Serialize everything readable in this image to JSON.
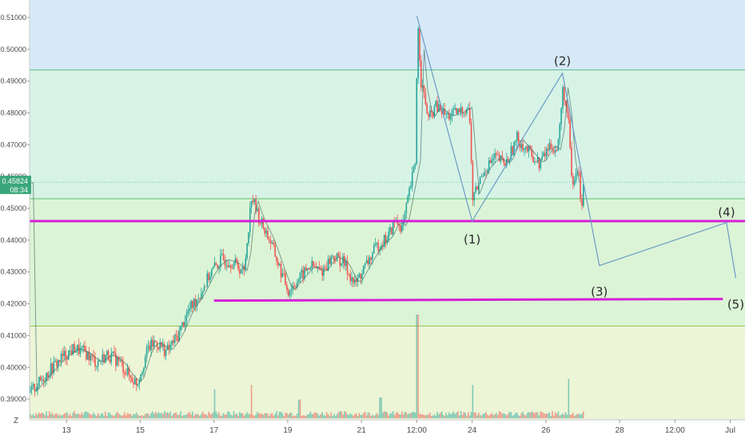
{
  "chart_data": {
    "type": "candlestick",
    "y_axis": {
      "ticks": [
        "0.39000",
        "0.40000",
        "0.41000",
        "0.42000",
        "0.43000",
        "0.44000",
        "0.45000",
        "0.46000",
        "0.47000",
        "0.48000",
        "0.49000",
        "0.50000",
        "0.51000"
      ],
      "range": [
        0.3835,
        0.5155
      ]
    },
    "x_axis": {
      "ticks": [
        {
          "label": "13",
          "day": 13
        },
        {
          "label": "15",
          "day": 15
        },
        {
          "label": "17",
          "day": 17
        },
        {
          "label": "19",
          "day": 19
        },
        {
          "label": "21",
          "day": 21
        },
        {
          "label": "12:00",
          "day": 22.5
        },
        {
          "label": "24",
          "day": 24
        },
        {
          "label": "26",
          "day": 26
        },
        {
          "label": "28",
          "day": 28
        },
        {
          "label": "12:00",
          "day": 29.5
        },
        {
          "label": "Jul",
          "day": 31
        }
      ],
      "range_days": [
        12.0,
        31.4
      ],
      "corner_label": "Z"
    },
    "current_price": {
      "value": "0.45824",
      "countdown": "08:34",
      "price": 0.45824
    },
    "fib_zones": [
      {
        "from": 0.4935,
        "to": 0.5155,
        "color": "#d6e9f7"
      },
      {
        "from": 0.453,
        "to": 0.4935,
        "color": "#d7f3e6"
      },
      {
        "from": 0.413,
        "to": 0.453,
        "color": "#dcf4d6"
      },
      {
        "from": 0.3835,
        "to": 0.413,
        "color": "#ecf5d6"
      }
    ],
    "fib_lines": [
      {
        "price": 0.4935,
        "color": "#5bbf8a"
      },
      {
        "price": 0.453,
        "color": "#5bbf6a"
      },
      {
        "price": 0.413,
        "color": "#8fc84f"
      }
    ],
    "horizontal_lines": [
      {
        "price": 0.446,
        "from_day": 12.0,
        "to_day": 31.4
      },
      {
        "price": 0.421,
        "from_day": 17.0,
        "to_day": 30.8,
        "price_end": 0.4215
      }
    ],
    "wave_path": [
      {
        "day": 22.5,
        "price": 0.5105
      },
      {
        "day": 24.0,
        "price": 0.446
      },
      {
        "day": 26.45,
        "price": 0.4925
      },
      {
        "day": 27.45,
        "price": 0.432
      },
      {
        "day": 30.9,
        "price": 0.4455
      },
      {
        "day": 31.15,
        "price": 0.428
      }
    ],
    "wave_labels": [
      {
        "text": "(1)",
        "day": 24.0,
        "price": 0.439
      },
      {
        "text": "(2)",
        "day": 26.45,
        "price": 0.495
      },
      {
        "text": "(3)",
        "day": 27.45,
        "price": 0.4225
      },
      {
        "text": "(4)",
        "day": 30.9,
        "price": 0.4475
      },
      {
        "text": "(5)",
        "day": 31.15,
        "price": 0.4185
      }
    ],
    "price_path": [
      {
        "day": 12.0,
        "price": 0.392
      },
      {
        "day": 12.3,
        "price": 0.396
      },
      {
        "day": 12.6,
        "price": 0.4
      },
      {
        "day": 12.9,
        "price": 0.4035
      },
      {
        "day": 13.2,
        "price": 0.406
      },
      {
        "day": 13.5,
        "price": 0.4045
      },
      {
        "day": 13.8,
        "price": 0.4015
      },
      {
        "day": 14.1,
        "price": 0.404
      },
      {
        "day": 14.4,
        "price": 0.402
      },
      {
        "day": 14.7,
        "price": 0.397
      },
      {
        "day": 14.9,
        "price": 0.395
      },
      {
        "day": 15.2,
        "price": 0.406
      },
      {
        "day": 15.4,
        "price": 0.408
      },
      {
        "day": 15.7,
        "price": 0.405
      },
      {
        "day": 16.0,
        "price": 0.41
      },
      {
        "day": 16.3,
        "price": 0.418
      },
      {
        "day": 16.6,
        "price": 0.423
      },
      {
        "day": 16.9,
        "price": 0.43
      },
      {
        "day": 17.2,
        "price": 0.434
      },
      {
        "day": 17.5,
        "price": 0.433
      },
      {
        "day": 17.8,
        "price": 0.43
      },
      {
        "day": 18.0,
        "price": 0.454
      },
      {
        "day": 18.2,
        "price": 0.447
      },
      {
        "day": 18.5,
        "price": 0.44
      },
      {
        "day": 18.8,
        "price": 0.43
      },
      {
        "day": 19.0,
        "price": 0.424
      },
      {
        "day": 19.3,
        "price": 0.428
      },
      {
        "day": 19.6,
        "price": 0.432
      },
      {
        "day": 19.9,
        "price": 0.43
      },
      {
        "day": 20.2,
        "price": 0.435
      },
      {
        "day": 20.5,
        "price": 0.433
      },
      {
        "day": 20.8,
        "price": 0.426
      },
      {
        "day": 21.1,
        "price": 0.432
      },
      {
        "day": 21.4,
        "price": 0.438
      },
      {
        "day": 21.7,
        "price": 0.441
      },
      {
        "day": 21.9,
        "price": 0.446
      },
      {
        "day": 22.1,
        "price": 0.444
      },
      {
        "day": 22.3,
        "price": 0.456
      },
      {
        "day": 22.45,
        "price": 0.465
      },
      {
        "day": 22.5,
        "price": 0.51
      },
      {
        "day": 22.6,
        "price": 0.49
      },
      {
        "day": 22.8,
        "price": 0.478
      },
      {
        "day": 23.0,
        "price": 0.482
      },
      {
        "day": 23.3,
        "price": 0.479
      },
      {
        "day": 23.6,
        "price": 0.48
      },
      {
        "day": 23.9,
        "price": 0.482
      },
      {
        "day": 24.0,
        "price": 0.453
      },
      {
        "day": 24.3,
        "price": 0.462
      },
      {
        "day": 24.6,
        "price": 0.466
      },
      {
        "day": 24.9,
        "price": 0.464
      },
      {
        "day": 25.2,
        "price": 0.472
      },
      {
        "day": 25.5,
        "price": 0.468
      },
      {
        "day": 25.8,
        "price": 0.464
      },
      {
        "day": 26.1,
        "price": 0.47
      },
      {
        "day": 26.3,
        "price": 0.468
      },
      {
        "day": 26.45,
        "price": 0.488
      },
      {
        "day": 26.6,
        "price": 0.476
      },
      {
        "day": 26.7,
        "price": 0.456
      },
      {
        "day": 26.85,
        "price": 0.463
      },
      {
        "day": 26.95,
        "price": 0.451
      },
      {
        "day": 27.0,
        "price": 0.458
      }
    ],
    "candle_colors": {
      "up": "#26a69a",
      "down": "#ef5350"
    },
    "volume": [
      {
        "day": 22.5,
        "value": 1.0
      },
      {
        "day": 24.0,
        "value": 0.32
      },
      {
        "day": 26.6,
        "value": 0.38
      },
      {
        "day": 18.0,
        "value": 0.32
      },
      {
        "day": 17.0,
        "value": 0.28
      },
      {
        "day": 19.3,
        "value": 0.18
      },
      {
        "day": 21.5,
        "value": 0.2
      }
    ]
  }
}
